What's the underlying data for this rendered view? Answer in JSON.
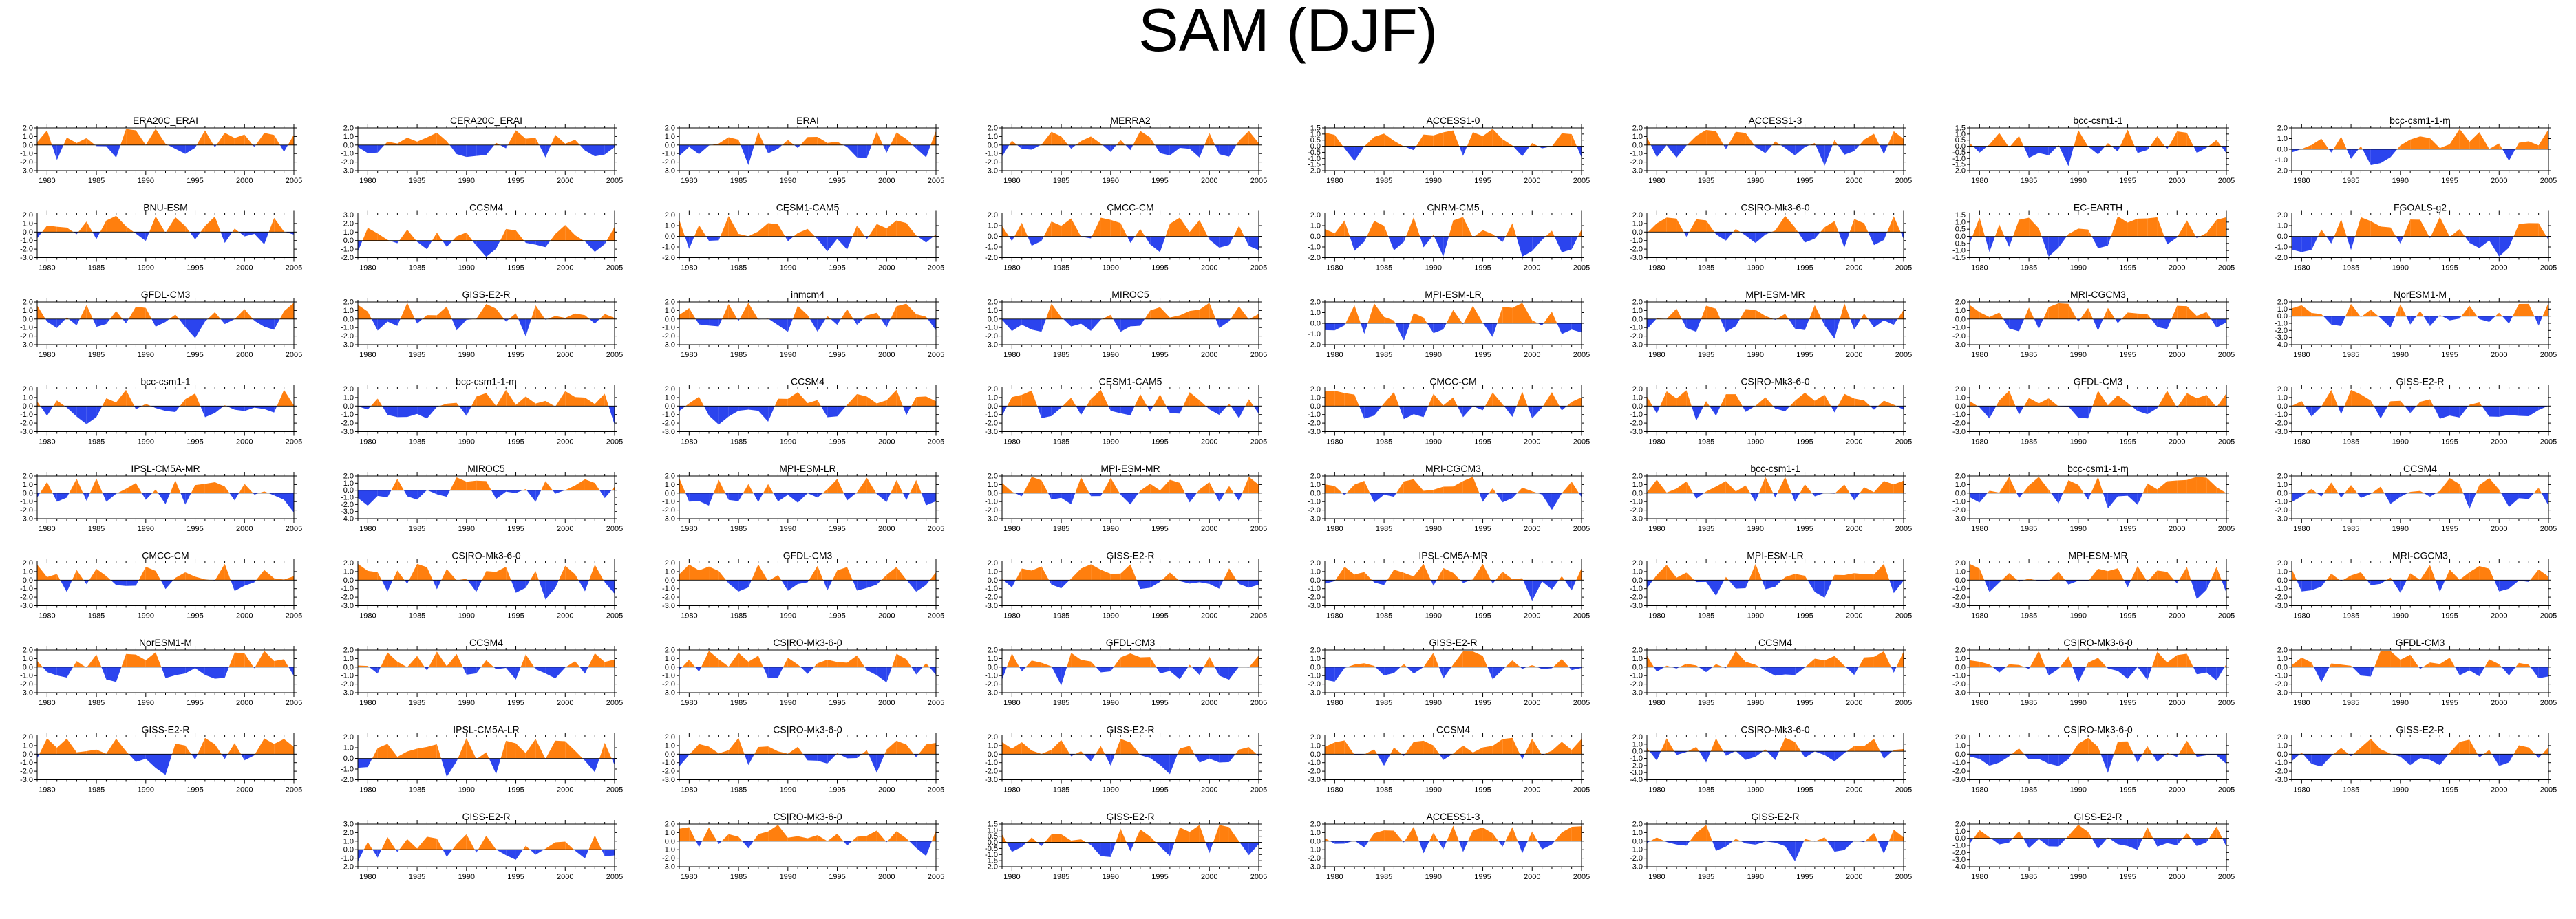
{
  "title": "SAM (DJF)",
  "colors": {
    "positive": "#ff7f0e",
    "negative": "#2b44ee",
    "axis": "#000000"
  },
  "chart_data": {
    "type": "area",
    "title": "SAM (DJF)",
    "x_ticks": [
      "1980",
      "1985",
      "1990",
      "1995",
      "2000",
      "2005"
    ],
    "xlim": [
      1979,
      2005
    ],
    "grid": false,
    "legend": "none",
    "panels": [
      {
        "name": "ERA20C_ERAI",
        "y_ticks": [
          "2.0",
          "1.0",
          "0.0",
          "-1.0",
          "-2.0",
          "-3.0"
        ],
        "ylim": [
          -3,
          2
        ],
        "seed": 1
      },
      {
        "name": "CERA20C_ERAI",
        "y_ticks": [
          "2.0",
          "1.0",
          "0.0",
          "-1.0",
          "-2.0",
          "-3.0"
        ],
        "ylim": [
          -3,
          2
        ],
        "seed": 2
      },
      {
        "name": "ERAI",
        "y_ticks": [
          "2.0",
          "1.0",
          "0.0",
          "-1.0",
          "-2.0",
          "-3.0"
        ],
        "ylim": [
          -3,
          2
        ],
        "seed": 3
      },
      {
        "name": "MERRA2",
        "y_ticks": [
          "2.0",
          "1.0",
          "0.0",
          "-1.0",
          "-2.0",
          "-3.0"
        ],
        "ylim": [
          -3,
          2
        ],
        "seed": 4
      },
      {
        "name": "ACCESS1-0",
        "y_ticks": [
          "1.5",
          "1.0",
          "0.5",
          "0.0",
          "-0.5",
          "-1.0",
          "-1.5",
          "-2.0"
        ],
        "ylim": [
          -2,
          1.5
        ],
        "seed": 5
      },
      {
        "name": "ACCESS1-3",
        "y_ticks": [
          "2.0",
          "1.0",
          "0.0",
          "-1.0",
          "-2.0",
          "-3.0"
        ],
        "ylim": [
          -3,
          2
        ],
        "seed": 6
      },
      {
        "name": "bcc-csm1-1",
        "y_ticks": [
          "1.5",
          "1.0",
          "0.5",
          "0.0",
          "-0.5",
          "-1.0",
          "-1.5",
          "-2.0"
        ],
        "ylim": [
          -2,
          1.5
        ],
        "seed": 7
      },
      {
        "name": "bcc-csm1-1-m",
        "y_ticks": [
          "2.0",
          "1.0",
          "0.0",
          "-1.0",
          "-2.0"
        ],
        "ylim": [
          -2,
          2
        ],
        "seed": 8
      },
      {
        "name": "BNU-ESM",
        "y_ticks": [
          "2.0",
          "1.0",
          "0.0",
          "-1.0",
          "-2.0",
          "-3.0"
        ],
        "ylim": [
          -3,
          2
        ],
        "seed": 9
      },
      {
        "name": "CCSM4",
        "y_ticks": [
          "3.0",
          "2.0",
          "1.0",
          "0.0",
          "-1.0",
          "-2.0"
        ],
        "ylim": [
          -2,
          3
        ],
        "seed": 10
      },
      {
        "name": "CESM1-CAM5",
        "y_ticks": [
          "2.0",
          "1.0",
          "0.0",
          "-1.0",
          "-2.0"
        ],
        "ylim": [
          -2,
          2
        ],
        "seed": 11
      },
      {
        "name": "CMCC-CM",
        "y_ticks": [
          "2.0",
          "1.0",
          "0.0",
          "-1.0",
          "-2.0"
        ],
        "ylim": [
          -2,
          2
        ],
        "seed": 12
      },
      {
        "name": "CNRM-CM5",
        "y_ticks": [
          "2.0",
          "1.0",
          "0.0",
          "-1.0",
          "-2.0"
        ],
        "ylim": [
          -2,
          2
        ],
        "seed": 13
      },
      {
        "name": "CSIRO-Mk3-6-0",
        "y_ticks": [
          "2.0",
          "1.0",
          "0.0",
          "-1.0",
          "-2.0",
          "-3.0"
        ],
        "ylim": [
          -3,
          2
        ],
        "seed": 14
      },
      {
        "name": "EC-EARTH",
        "y_ticks": [
          "1.5",
          "1.0",
          "0.5",
          "0.0",
          "-0.5",
          "-1.0",
          "-1.5"
        ],
        "ylim": [
          -1.5,
          1.5
        ],
        "seed": 15
      },
      {
        "name": "FGOALS-g2",
        "y_ticks": [
          "2.0",
          "1.0",
          "0.0",
          "-1.0",
          "-2.0"
        ],
        "ylim": [
          -2,
          2
        ],
        "seed": 16
      },
      {
        "name": "GFDL-CM3",
        "y_ticks": [
          "2.0",
          "1.0",
          "0.0",
          "-1.0",
          "-2.0",
          "-3.0"
        ],
        "ylim": [
          -3,
          2
        ],
        "seed": 17
      },
      {
        "name": "GISS-E2-R",
        "y_ticks": [
          "2.0",
          "1.0",
          "0.0",
          "-1.0",
          "-2.0",
          "-3.0"
        ],
        "ylim": [
          -3,
          2
        ],
        "seed": 18
      },
      {
        "name": "inmcm4",
        "y_ticks": [
          "2.0",
          "1.0",
          "0.0",
          "-1.0",
          "-2.0",
          "-3.0"
        ],
        "ylim": [
          -3,
          2
        ],
        "seed": 19
      },
      {
        "name": "MIROC5",
        "y_ticks": [
          "2.0",
          "1.0",
          "0.0",
          "-1.0",
          "-2.0",
          "-3.0"
        ],
        "ylim": [
          -3,
          2
        ],
        "seed": 20
      },
      {
        "name": "MPI-ESM-LR",
        "y_ticks": [
          "2.0",
          "1.0",
          "0.0",
          "-1.0",
          "-2.0"
        ],
        "ylim": [
          -2,
          2
        ],
        "seed": 21
      },
      {
        "name": "MPI-ESM-MR",
        "y_ticks": [
          "2.0",
          "1.0",
          "0.0",
          "-1.0",
          "-2.0",
          "-3.0"
        ],
        "ylim": [
          -3,
          2
        ],
        "seed": 22
      },
      {
        "name": "MRI-CGCM3",
        "y_ticks": [
          "2.0",
          "1.0",
          "0.0",
          "-1.0",
          "-2.0",
          "-3.0"
        ],
        "ylim": [
          -3,
          2
        ],
        "seed": 23
      },
      {
        "name": "NorESM1-M",
        "y_ticks": [
          "2.0",
          "1.0",
          "0.0",
          "-1.0",
          "-2.0",
          "-3.0",
          "-4.0"
        ],
        "ylim": [
          -4,
          2
        ],
        "seed": 24
      },
      {
        "name": "bcc-csm1-1",
        "y_ticks": [
          "2.0",
          "1.0",
          "0.0",
          "-1.0",
          "-2.0",
          "-3.0"
        ],
        "ylim": [
          -3,
          2
        ],
        "seed": 25
      },
      {
        "name": "bcc-csm1-1-m",
        "y_ticks": [
          "2.0",
          "1.0",
          "0.0",
          "-1.0",
          "-2.0",
          "-3.0"
        ],
        "ylim": [
          -3,
          2
        ],
        "seed": 26
      },
      {
        "name": "CCSM4",
        "y_ticks": [
          "2.0",
          "1.0",
          "0.0",
          "-1.0",
          "-2.0",
          "-3.0"
        ],
        "ylim": [
          -3,
          2
        ],
        "seed": 27
      },
      {
        "name": "CESM1-CAM5",
        "y_ticks": [
          "2.0",
          "1.0",
          "0.0",
          "-1.0",
          "-2.0",
          "-3.0"
        ],
        "ylim": [
          -3,
          2
        ],
        "seed": 28
      },
      {
        "name": "CMCC-CM",
        "y_ticks": [
          "2.0",
          "1.0",
          "0.0",
          "-1.0",
          "-2.0",
          "-3.0"
        ],
        "ylim": [
          -3,
          2
        ],
        "seed": 29
      },
      {
        "name": "CSIRO-Mk3-6-0",
        "y_ticks": [
          "2.0",
          "1.0",
          "0.0",
          "-1.0",
          "-2.0",
          "-3.0"
        ],
        "ylim": [
          -3,
          2
        ],
        "seed": 30
      },
      {
        "name": "GFDL-CM3",
        "y_ticks": [
          "2.0",
          "1.0",
          "0.0",
          "-1.0",
          "-2.0",
          "-3.0"
        ],
        "ylim": [
          -3,
          2
        ],
        "seed": 31
      },
      {
        "name": "GISS-E2-R",
        "y_ticks": [
          "2.0",
          "1.0",
          "0.0",
          "-1.0",
          "-2.0",
          "-3.0"
        ],
        "ylim": [
          -3,
          2
        ],
        "seed": 32
      },
      {
        "name": "IPSL-CM5A-MR",
        "y_ticks": [
          "2.0",
          "1.0",
          "0.0",
          "-1.0",
          "-2.0",
          "-3.0"
        ],
        "ylim": [
          -3,
          2
        ],
        "seed": 33
      },
      {
        "name": "MIROC5",
        "y_ticks": [
          "2.0",
          "1.0",
          "0.0",
          "-1.0",
          "-2.0",
          "-3.0",
          "-4.0"
        ],
        "ylim": [
          -4,
          2
        ],
        "seed": 34
      },
      {
        "name": "MPI-ESM-LR",
        "y_ticks": [
          "2.0",
          "1.0",
          "0.0",
          "-1.0",
          "-2.0",
          "-3.0"
        ],
        "ylim": [
          -3,
          2
        ],
        "seed": 35
      },
      {
        "name": "MPI-ESM-MR",
        "y_ticks": [
          "2.0",
          "1.0",
          "0.0",
          "-1.0",
          "-2.0",
          "-3.0"
        ],
        "ylim": [
          -3,
          2
        ],
        "seed": 36
      },
      {
        "name": "MRI-CGCM3",
        "y_ticks": [
          "2.0",
          "1.0",
          "0.0",
          "-1.0",
          "-2.0",
          "-3.0"
        ],
        "ylim": [
          -3,
          2
        ],
        "seed": 37
      },
      {
        "name": "bcc-csm1-1",
        "y_ticks": [
          "2.0",
          "1.0",
          "0.0",
          "-1.0",
          "-2.0",
          "-3.0"
        ],
        "ylim": [
          -3,
          2
        ],
        "seed": 38
      },
      {
        "name": "bcc-csm1-1-m",
        "y_ticks": [
          "2.0",
          "1.0",
          "0.0",
          "-1.0",
          "-2.0",
          "-3.0"
        ],
        "ylim": [
          -3,
          2
        ],
        "seed": 39
      },
      {
        "name": "CCSM4",
        "y_ticks": [
          "2.0",
          "1.0",
          "0.0",
          "-1.0",
          "-2.0",
          "-3.0"
        ],
        "ylim": [
          -3,
          2
        ],
        "seed": 40
      },
      {
        "name": "CMCC-CM",
        "y_ticks": [
          "2.0",
          "1.0",
          "0.0",
          "-1.0",
          "-2.0",
          "-3.0"
        ],
        "ylim": [
          -3,
          2
        ],
        "seed": 41
      },
      {
        "name": "CSIRO-Mk3-6-0",
        "y_ticks": [
          "2.0",
          "1.0",
          "0.0",
          "-1.0",
          "-2.0",
          "-3.0"
        ],
        "ylim": [
          -3,
          2
        ],
        "seed": 42
      },
      {
        "name": "GFDL-CM3",
        "y_ticks": [
          "2.0",
          "1.0",
          "0.0",
          "-1.0",
          "-2.0",
          "-3.0"
        ],
        "ylim": [
          -3,
          2
        ],
        "seed": 43
      },
      {
        "name": "GISS-E2-R",
        "y_ticks": [
          "2.0",
          "1.0",
          "0.0",
          "-1.0",
          "-2.0",
          "-3.0"
        ],
        "ylim": [
          -3,
          2
        ],
        "seed": 44
      },
      {
        "name": "IPSL-CM5A-MR",
        "y_ticks": [
          "2.0",
          "1.0",
          "0.0",
          "-1.0",
          "-2.0",
          "-3.0"
        ],
        "ylim": [
          -3,
          2
        ],
        "seed": 45
      },
      {
        "name": "MPI-ESM-LR",
        "y_ticks": [
          "2.0",
          "1.0",
          "0.0",
          "-1.0",
          "-2.0",
          "-3.0"
        ],
        "ylim": [
          -3,
          2
        ],
        "seed": 46
      },
      {
        "name": "MPI-ESM-MR",
        "y_ticks": [
          "2.0",
          "1.0",
          "0.0",
          "-1.0",
          "-2.0",
          "-3.0"
        ],
        "ylim": [
          -3,
          2
        ],
        "seed": 47
      },
      {
        "name": "MRI-CGCM3",
        "y_ticks": [
          "2.0",
          "1.0",
          "0.0",
          "-1.0",
          "-2.0",
          "-3.0"
        ],
        "ylim": [
          -3,
          2
        ],
        "seed": 48
      },
      {
        "name": "NorESM1-M",
        "y_ticks": [
          "2.0",
          "1.0",
          "0.0",
          "-1.0",
          "-2.0",
          "-3.0"
        ],
        "ylim": [
          -3,
          2
        ],
        "seed": 49
      },
      {
        "name": "CCSM4",
        "y_ticks": [
          "2.0",
          "1.0",
          "0.0",
          "-1.0",
          "-2.0",
          "-3.0"
        ],
        "ylim": [
          -3,
          2
        ],
        "seed": 50
      },
      {
        "name": "CSIRO-Mk3-6-0",
        "y_ticks": [
          "2.0",
          "1.0",
          "0.0",
          "-1.0",
          "-2.0",
          "-3.0"
        ],
        "ylim": [
          -3,
          2
        ],
        "seed": 51
      },
      {
        "name": "GFDL-CM3",
        "y_ticks": [
          "2.0",
          "1.0",
          "0.0",
          "-1.0",
          "-2.0",
          "-3.0"
        ],
        "ylim": [
          -3,
          2
        ],
        "seed": 52
      },
      {
        "name": "GISS-E2-R",
        "y_ticks": [
          "2.0",
          "1.0",
          "0.0",
          "-1.0",
          "-2.0",
          "-3.0"
        ],
        "ylim": [
          -3,
          2
        ],
        "seed": 53
      },
      {
        "name": "CCSM4",
        "y_ticks": [
          "2.0",
          "1.0",
          "0.0",
          "-1.0",
          "-2.0",
          "-3.0"
        ],
        "ylim": [
          -3,
          2
        ],
        "seed": 54
      },
      {
        "name": "CSIRO-Mk3-6-0",
        "y_ticks": [
          "2.0",
          "1.0",
          "0.0",
          "-1.0",
          "-2.0",
          "-3.0"
        ],
        "ylim": [
          -3,
          2
        ],
        "seed": 55
      },
      {
        "name": "GFDL-CM3",
        "y_ticks": [
          "2.0",
          "1.0",
          "0.0",
          "-1.0",
          "-2.0",
          "-3.0"
        ],
        "ylim": [
          -3,
          2
        ],
        "seed": 56
      },
      {
        "name": "GISS-E2-R",
        "y_ticks": [
          "2.0",
          "1.0",
          "0.0",
          "-1.0",
          "-2.0",
          "-3.0"
        ],
        "ylim": [
          -3,
          2
        ],
        "seed": 57
      },
      {
        "name": "IPSL-CM5A-LR",
        "y_ticks": [
          "2.0",
          "1.0",
          "0.0",
          "-1.0",
          "-2.0"
        ],
        "ylim": [
          -2,
          2
        ],
        "seed": 58
      },
      {
        "name": "CSIRO-Mk3-6-0",
        "y_ticks": [
          "2.0",
          "1.0",
          "0.0",
          "-1.0",
          "-2.0",
          "-3.0"
        ],
        "ylim": [
          -3,
          2
        ],
        "seed": 59
      },
      {
        "name": "GISS-E2-R",
        "y_ticks": [
          "2.0",
          "1.0",
          "0.0",
          "-1.0",
          "-2.0",
          "-3.0"
        ],
        "ylim": [
          -3,
          2
        ],
        "seed": 60
      },
      {
        "name": "CCSM4",
        "y_ticks": [
          "2.0",
          "1.0",
          "0.0",
          "-1.0",
          "-2.0",
          "-3.0"
        ],
        "ylim": [
          -3,
          2
        ],
        "seed": 61
      },
      {
        "name": "CSIRO-Mk3-6-0",
        "y_ticks": [
          "2.0",
          "1.0",
          "0.0",
          "-1.0",
          "-2.0",
          "-3.0",
          "-4.0"
        ],
        "ylim": [
          -4,
          2
        ],
        "seed": 62
      },
      {
        "name": "CSIRO-Mk3-6-0",
        "y_ticks": [
          "2.0",
          "1.0",
          "0.0",
          "-1.0",
          "-2.0",
          "-3.0"
        ],
        "ylim": [
          -3,
          2
        ],
        "seed": 63
      },
      {
        "name": "GISS-E2-R",
        "y_ticks": [
          "2.0",
          "1.0",
          "0.0",
          "-1.0",
          "-2.0",
          "-3.0"
        ],
        "ylim": [
          -3,
          2
        ],
        "seed": 64
      },
      {
        "name": "GISS-E2-R",
        "y_ticks": [
          "3.0",
          "2.0",
          "1.0",
          "0.0",
          "-1.0",
          "-2.0"
        ],
        "ylim": [
          -2,
          3
        ],
        "seed": 65
      },
      {
        "name": "CSIRO-Mk3-6-0",
        "y_ticks": [
          "2.0",
          "1.0",
          "0.0",
          "-1.0",
          "-2.0",
          "-3.0"
        ],
        "ylim": [
          -3,
          2
        ],
        "seed": 66
      },
      {
        "name": "GISS-E2-R",
        "y_ticks": [
          "1.5",
          "1.0",
          "0.5",
          "0.0",
          "-0.5",
          "-1.0",
          "-1.5",
          "-2.0"
        ],
        "ylim": [
          -2,
          1.5
        ],
        "seed": 67
      },
      {
        "name": "ACCESS1-3",
        "y_ticks": [
          "2.0",
          "1.0",
          "0.0",
          "-1.0",
          "-2.0",
          "-3.0"
        ],
        "ylim": [
          -3,
          2
        ],
        "seed": 68
      },
      {
        "name": "GISS-E2-R",
        "y_ticks": [
          "2.0",
          "1.0",
          "0.0",
          "-1.0",
          "-2.0",
          "-3.0"
        ],
        "ylim": [
          -3,
          2
        ],
        "seed": 69
      },
      {
        "name": "GISS-E2-R",
        "y_ticks": [
          "2.0",
          "1.0",
          "0.0",
          "-1.0",
          "-2.0",
          "-3.0",
          "-4.0"
        ],
        "ylim": [
          -4,
          2
        ],
        "seed": 70
      }
    ]
  }
}
